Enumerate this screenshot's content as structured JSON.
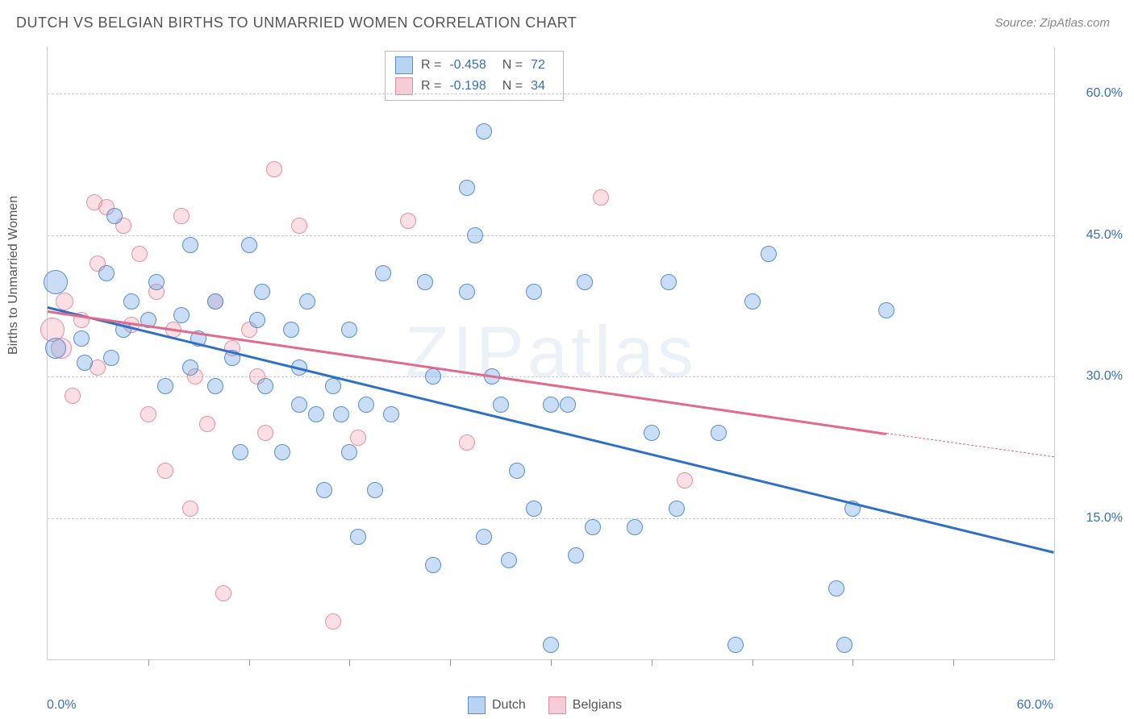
{
  "title": "DUTCH VS BELGIAN BIRTHS TO UNMARRIED WOMEN CORRELATION CHART",
  "source": "Source: ZipAtlas.com",
  "watermark": "ZIPatlas",
  "y_axis_label": "Births to Unmarried Women",
  "axes": {
    "x_min_label": "0.0%",
    "x_max_label": "60.0%",
    "x_min": 0,
    "x_max": 60,
    "y_min": 0,
    "y_max": 65,
    "y_ticks": [
      {
        "v": 15,
        "label": "15.0%"
      },
      {
        "v": 30,
        "label": "30.0%"
      },
      {
        "v": 45,
        "label": "45.0%"
      },
      {
        "v": 60,
        "label": "60.0%"
      }
    ],
    "x_tick_positions": [
      6,
      12,
      18,
      24,
      30,
      36,
      42,
      48,
      54
    ]
  },
  "legend_stats": [
    {
      "series": "dutch",
      "color_fill": "#b9d4f2",
      "color_border": "#5a8fc9",
      "r": "-0.458",
      "n": "72"
    },
    {
      "series": "belgians",
      "color_fill": "#f6cdd7",
      "color_border": "#e08ba3",
      "r": "-0.198",
      "n": "34"
    }
  ],
  "bottom_legend": [
    {
      "label": "Dutch",
      "fill": "#b9d4f2",
      "border": "#5a8fc9"
    },
    {
      "label": "Belgians",
      "fill": "#f6cdd7",
      "border": "#e08ba3"
    }
  ],
  "trend_lines": {
    "blue": {
      "x1": 0,
      "y1": 37.5,
      "x2": 60,
      "y2": 11.5,
      "color": "#2f6fc4"
    },
    "pink": {
      "x1": 0,
      "y1": 37,
      "x2": 50,
      "y2": 24,
      "color": "#e06b8c",
      "dash_x2": 60,
      "dash_y2": 21.5
    }
  },
  "points": {
    "blue": [
      {
        "x": 0.5,
        "y": 40,
        "r": 14
      },
      {
        "x": 0.5,
        "y": 33,
        "r": 12
      },
      {
        "x": 2,
        "y": 34,
        "r": 9
      },
      {
        "x": 2.2,
        "y": 31.5,
        "r": 9
      },
      {
        "x": 3.5,
        "y": 41,
        "r": 9
      },
      {
        "x": 3.8,
        "y": 32,
        "r": 9
      },
      {
        "x": 4,
        "y": 47,
        "r": 9
      },
      {
        "x": 4.5,
        "y": 35,
        "r": 9
      },
      {
        "x": 5,
        "y": 38,
        "r": 9
      },
      {
        "x": 6,
        "y": 36,
        "r": 9
      },
      {
        "x": 6.5,
        "y": 40,
        "r": 9
      },
      {
        "x": 7,
        "y": 29,
        "r": 9
      },
      {
        "x": 8,
        "y": 36.5,
        "r": 9
      },
      {
        "x": 8.5,
        "y": 44,
        "r": 9
      },
      {
        "x": 8.5,
        "y": 31,
        "r": 9
      },
      {
        "x": 9,
        "y": 34,
        "r": 9
      },
      {
        "x": 10,
        "y": 29,
        "r": 9
      },
      {
        "x": 10,
        "y": 38,
        "r": 9
      },
      {
        "x": 11,
        "y": 32,
        "r": 9
      },
      {
        "x": 11.5,
        "y": 22,
        "r": 9
      },
      {
        "x": 12,
        "y": 44,
        "r": 9
      },
      {
        "x": 12.5,
        "y": 36,
        "r": 9
      },
      {
        "x": 12.8,
        "y": 39,
        "r": 9
      },
      {
        "x": 13,
        "y": 29,
        "r": 9
      },
      {
        "x": 14,
        "y": 22,
        "r": 9
      },
      {
        "x": 14.5,
        "y": 35,
        "r": 9
      },
      {
        "x": 15,
        "y": 27,
        "r": 9
      },
      {
        "x": 15,
        "y": 31,
        "r": 9
      },
      {
        "x": 15.5,
        "y": 38,
        "r": 9
      },
      {
        "x": 16,
        "y": 26,
        "r": 9
      },
      {
        "x": 16.5,
        "y": 18,
        "r": 9
      },
      {
        "x": 17,
        "y": 29,
        "r": 9
      },
      {
        "x": 17.5,
        "y": 26,
        "r": 9
      },
      {
        "x": 18,
        "y": 22,
        "r": 9
      },
      {
        "x": 18,
        "y": 35,
        "r": 9
      },
      {
        "x": 18.5,
        "y": 13,
        "r": 9
      },
      {
        "x": 19,
        "y": 27,
        "r": 9
      },
      {
        "x": 19.5,
        "y": 18,
        "r": 9
      },
      {
        "x": 20,
        "y": 41,
        "r": 9
      },
      {
        "x": 20.5,
        "y": 26,
        "r": 9
      },
      {
        "x": 22.5,
        "y": 40,
        "r": 9
      },
      {
        "x": 23,
        "y": 30,
        "r": 9
      },
      {
        "x": 23,
        "y": 10,
        "r": 9
      },
      {
        "x": 25,
        "y": 50,
        "r": 9
      },
      {
        "x": 25,
        "y": 39,
        "r": 9
      },
      {
        "x": 25.5,
        "y": 45,
        "r": 9
      },
      {
        "x": 26,
        "y": 56,
        "r": 9
      },
      {
        "x": 26,
        "y": 13,
        "r": 9
      },
      {
        "x": 26.5,
        "y": 30,
        "r": 9
      },
      {
        "x": 27,
        "y": 27,
        "r": 9
      },
      {
        "x": 27.5,
        "y": 10.5,
        "r": 9
      },
      {
        "x": 28,
        "y": 20,
        "r": 9
      },
      {
        "x": 29,
        "y": 39,
        "r": 9
      },
      {
        "x": 29,
        "y": 16,
        "r": 9
      },
      {
        "x": 30,
        "y": 1.5,
        "r": 9
      },
      {
        "x": 30,
        "y": 27,
        "r": 9
      },
      {
        "x": 31,
        "y": 27,
        "r": 9
      },
      {
        "x": 31.5,
        "y": 11,
        "r": 9
      },
      {
        "x": 32,
        "y": 40,
        "r": 9
      },
      {
        "x": 32.5,
        "y": 14,
        "r": 9
      },
      {
        "x": 35,
        "y": 14,
        "r": 9
      },
      {
        "x": 36,
        "y": 24,
        "r": 9
      },
      {
        "x": 37,
        "y": 40,
        "r": 9
      },
      {
        "x": 37.5,
        "y": 16,
        "r": 9
      },
      {
        "x": 40,
        "y": 24,
        "r": 9
      },
      {
        "x": 41,
        "y": 1.5,
        "r": 9
      },
      {
        "x": 42,
        "y": 38,
        "r": 9
      },
      {
        "x": 43,
        "y": 43,
        "r": 9
      },
      {
        "x": 47,
        "y": 7.5,
        "r": 9
      },
      {
        "x": 47.5,
        "y": 1.5,
        "r": 9
      },
      {
        "x": 48,
        "y": 16,
        "r": 9
      },
      {
        "x": 50,
        "y": 37,
        "r": 9
      }
    ],
    "pink": [
      {
        "x": 0.3,
        "y": 35,
        "r": 14
      },
      {
        "x": 0.8,
        "y": 33,
        "r": 12
      },
      {
        "x": 1,
        "y": 38,
        "r": 10
      },
      {
        "x": 1.5,
        "y": 28,
        "r": 9
      },
      {
        "x": 2,
        "y": 36,
        "r": 9
      },
      {
        "x": 2.8,
        "y": 48.5,
        "r": 9
      },
      {
        "x": 3,
        "y": 42,
        "r": 9
      },
      {
        "x": 3,
        "y": 31,
        "r": 9
      },
      {
        "x": 3.5,
        "y": 48,
        "r": 9
      },
      {
        "x": 4.5,
        "y": 46,
        "r": 9
      },
      {
        "x": 5,
        "y": 35.5,
        "r": 9
      },
      {
        "x": 5.5,
        "y": 43,
        "r": 9
      },
      {
        "x": 6,
        "y": 26,
        "r": 9
      },
      {
        "x": 6.5,
        "y": 39,
        "r": 9
      },
      {
        "x": 7,
        "y": 20,
        "r": 9
      },
      {
        "x": 7.5,
        "y": 35,
        "r": 9
      },
      {
        "x": 8,
        "y": 47,
        "r": 9
      },
      {
        "x": 8.5,
        "y": 16,
        "r": 9
      },
      {
        "x": 8.8,
        "y": 30,
        "r": 9
      },
      {
        "x": 9.5,
        "y": 25,
        "r": 9
      },
      {
        "x": 10,
        "y": 38,
        "r": 9
      },
      {
        "x": 10.5,
        "y": 7,
        "r": 9
      },
      {
        "x": 11,
        "y": 33,
        "r": 9
      },
      {
        "x": 12,
        "y": 35,
        "r": 9
      },
      {
        "x": 12.5,
        "y": 30,
        "r": 9
      },
      {
        "x": 13,
        "y": 24,
        "r": 9
      },
      {
        "x": 13.5,
        "y": 52,
        "r": 9
      },
      {
        "x": 15,
        "y": 46,
        "r": 9
      },
      {
        "x": 17,
        "y": 4,
        "r": 9
      },
      {
        "x": 18.5,
        "y": 23.5,
        "r": 9
      },
      {
        "x": 21.5,
        "y": 46.5,
        "r": 9
      },
      {
        "x": 25,
        "y": 23,
        "r": 9
      },
      {
        "x": 33,
        "y": 49,
        "r": 9
      },
      {
        "x": 38,
        "y": 19,
        "r": 9
      }
    ]
  }
}
